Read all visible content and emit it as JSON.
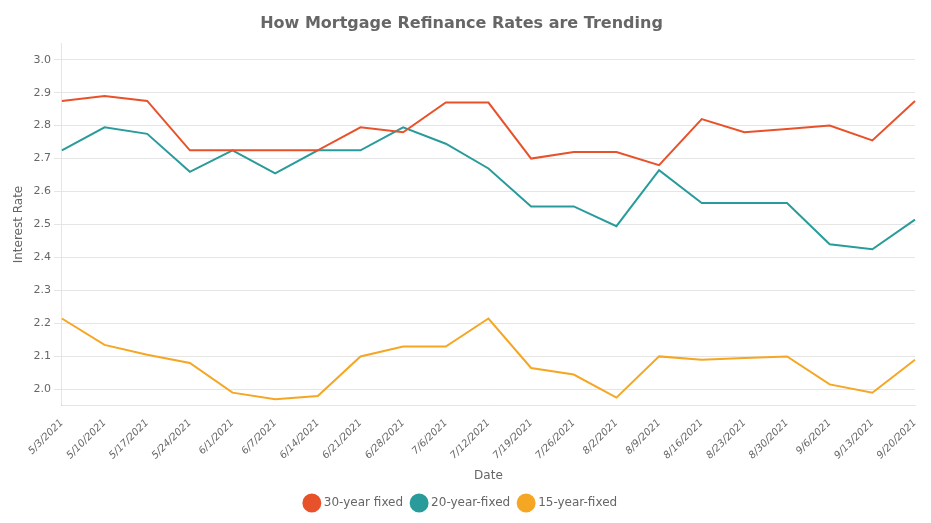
{
  "chart_data": {
    "type": "line",
    "title": "How Mortgage Refinance Rates are Trending",
    "xlabel": "Date",
    "ylabel": "Interest Rate",
    "categories": [
      "5/3/2021",
      "5/10/2021",
      "5/17/2021",
      "5/24/2021",
      "6/1/2021",
      "6/7/2021",
      "6/14/2021",
      "6/21/2021",
      "6/28/2021",
      "7/6/2021",
      "7/12/2021",
      "7/19/2021",
      "7/26/2021",
      "8/2/2021",
      "8/9/2021",
      "8/16/2021",
      "8/23/2021",
      "8/30/2021",
      "9/6/2021",
      "9/13/2021",
      "9/20/2021"
    ],
    "series": [
      {
        "name": "30-year fixed",
        "color": "#E8522A",
        "values": [
          2.875,
          2.89,
          2.875,
          2.725,
          2.725,
          2.725,
          2.725,
          2.795,
          2.78,
          2.87,
          2.87,
          2.7,
          2.72,
          2.72,
          2.68,
          2.82,
          2.78,
          2.79,
          2.8,
          2.755,
          2.875
        ]
      },
      {
        "name": "20-year-fixed",
        "color": "#2A9B9B",
        "values": [
          2.725,
          2.795,
          2.775,
          2.66,
          2.725,
          2.655,
          2.725,
          2.725,
          2.795,
          2.745,
          2.67,
          2.555,
          2.555,
          2.495,
          2.665,
          2.565,
          2.565,
          2.565,
          2.44,
          2.425,
          2.515
        ]
      },
      {
        "name": "15-year-fixed",
        "color": "#F5A623",
        "values": [
          2.215,
          2.135,
          2.105,
          2.08,
          1.99,
          1.97,
          1.98,
          2.1,
          2.13,
          2.13,
          2.215,
          2.065,
          2.045,
          1.975,
          2.1,
          2.09,
          2.095,
          2.1,
          2.015,
          1.99,
          2.09
        ]
      }
    ],
    "ylim": [
      1.95,
      3.05
    ],
    "yticks": [
      {
        "value": 2,
        "label": "2.0"
      },
      2.1,
      2.2,
      2.3,
      2.4,
      2.5,
      2.6,
      2.7,
      2.8,
      2.9,
      {
        "value": 3,
        "label": "3.0"
      }
    ],
    "grid": true,
    "legend": "bottom"
  }
}
